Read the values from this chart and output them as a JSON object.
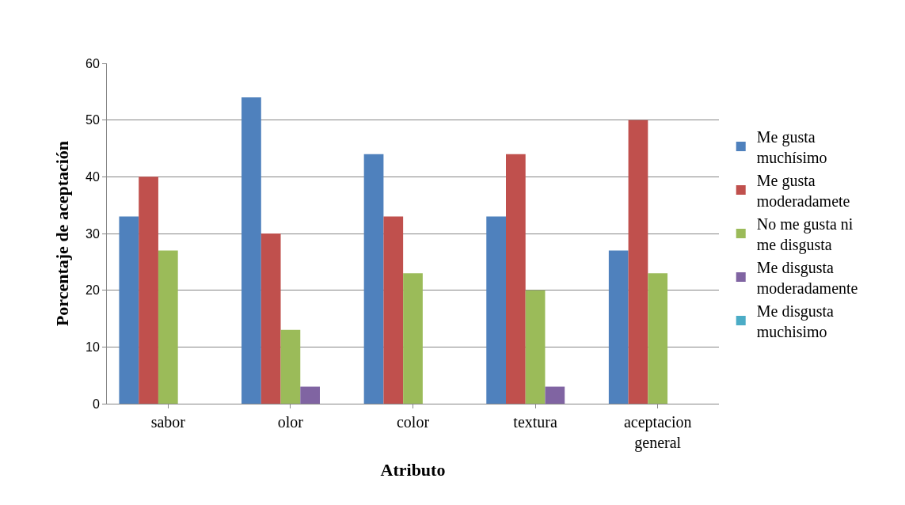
{
  "chart_data": {
    "type": "bar",
    "xlabel": "Atributo",
    "ylabel": "Porcentaje de aceptación",
    "categories": [
      "sabor",
      "olor",
      "color",
      "textura",
      "aceptacion general"
    ],
    "series": [
      {
        "name": "Me gusta muchísimo",
        "color": "#4f81bd",
        "values": [
          33,
          54,
          44,
          33,
          27
        ]
      },
      {
        "name": "Me gusta moderadamete",
        "color": "#c0504d",
        "values": [
          40,
          30,
          33,
          44,
          50
        ]
      },
      {
        "name": "No me gusta ni me disgusta",
        "color": "#9bbb59",
        "values": [
          27,
          13,
          23,
          20,
          23
        ]
      },
      {
        "name": "Me disgusta moderadamente",
        "color": "#8064a2",
        "values": [
          0,
          3,
          0,
          3,
          0
        ]
      },
      {
        "name": "Me disgusta muchisimo",
        "color": "#4bacc6",
        "values": [
          0,
          0,
          0,
          0,
          0
        ]
      }
    ],
    "ylim": [
      0,
      60
    ],
    "yticks": [
      0,
      10,
      20,
      30,
      40,
      50,
      60
    ],
    "grid": "y",
    "legend": "right"
  }
}
